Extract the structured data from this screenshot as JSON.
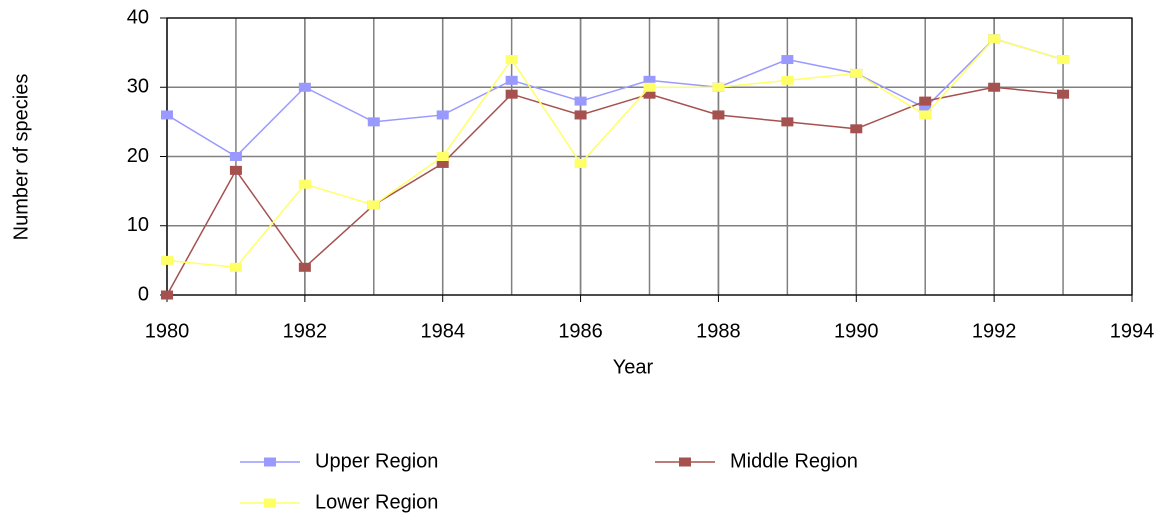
{
  "chart_data": {
    "type": "line",
    "x_label": "Year",
    "y_label": "Number of species",
    "x": [
      1980,
      1981,
      1982,
      1983,
      1984,
      1985,
      1986,
      1987,
      1988,
      1989,
      1990,
      1991,
      1992,
      1993
    ],
    "series": [
      {
        "name": "Upper Region",
        "color": "#9999ff",
        "values": [
          26,
          20,
          30,
          25,
          26,
          31,
          28,
          31,
          30,
          34,
          32,
          27,
          37,
          34
        ]
      },
      {
        "name": "Middle Region",
        "color": "#a5514f",
        "values": [
          0,
          18,
          4,
          13,
          19,
          29,
          26,
          29,
          26,
          25,
          24,
          28,
          30,
          29
        ]
      },
      {
        "name": "Lower Region",
        "color": "#ffff66",
        "values": [
          5,
          4,
          16,
          13,
          20,
          34,
          19,
          30,
          30,
          31,
          32,
          26,
          37,
          34
        ]
      }
    ],
    "xlim": [
      1980,
      1994
    ],
    "ylim": [
      0,
      40
    ],
    "xticks": [
      1980,
      1982,
      1984,
      1986,
      1988,
      1990,
      1992,
      1994
    ],
    "yticks": [
      0,
      10,
      20,
      30,
      40
    ],
    "grid": true,
    "legend": "bottom"
  }
}
